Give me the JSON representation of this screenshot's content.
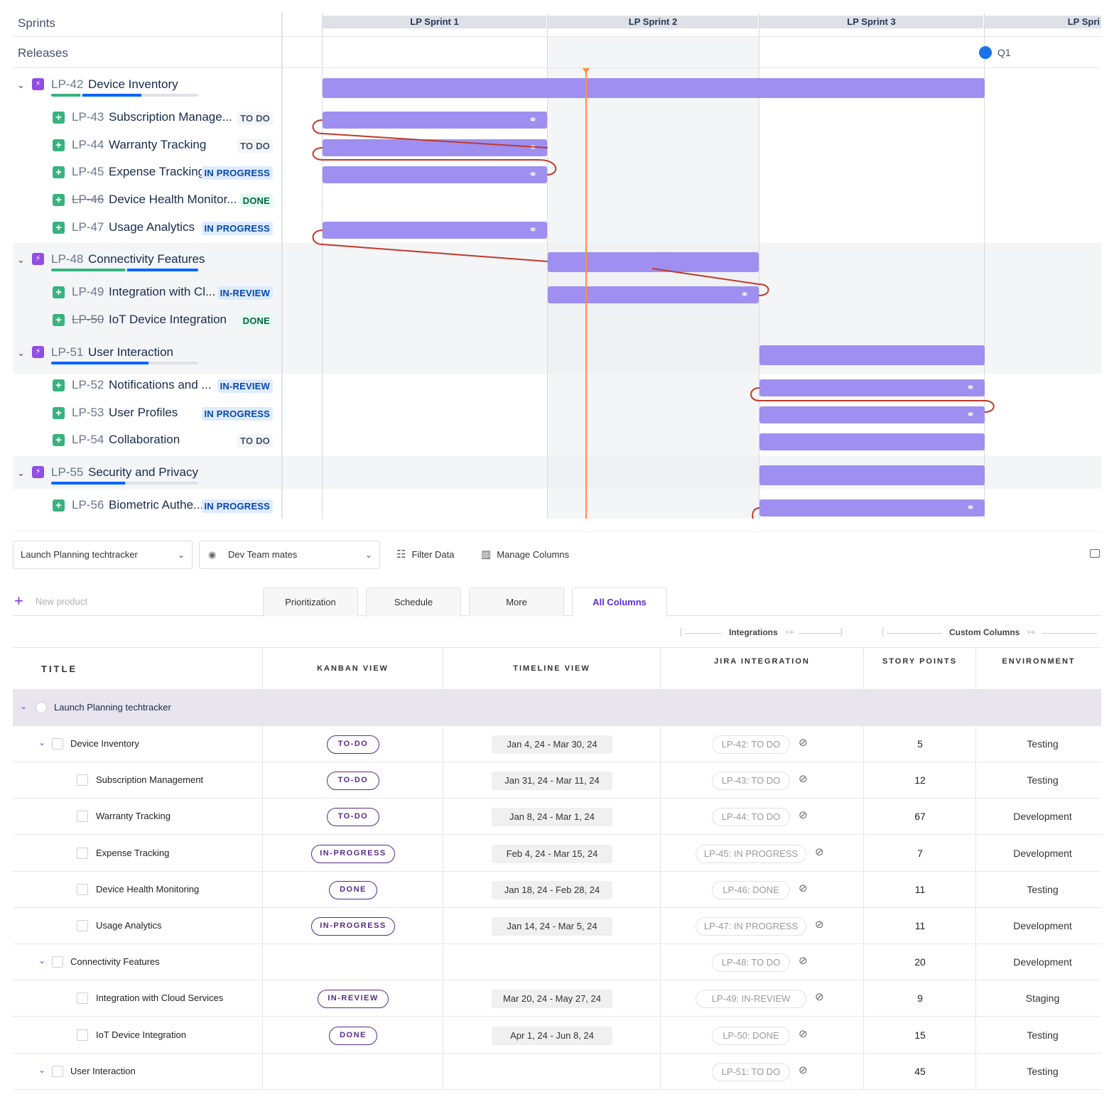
{
  "roadmap": {
    "sprints_label": "Sprints",
    "releases_label": "Releases",
    "sprints": [
      "LP Sprint 1",
      "LP Sprint 2",
      "LP Sprint 3",
      "LP Spri"
    ],
    "release": {
      "label": "Q1",
      "color": "#1a73e8"
    },
    "colors": {
      "bar": "#9e8ff0",
      "today": "#ff8f3f",
      "dependency": "#c0392b"
    },
    "rows": [
      {
        "type": "epic",
        "key": "LP-42",
        "title": "Device Inventory",
        "progress_done": 0.2,
        "progress_in_progress": 0.4
      },
      {
        "type": "story",
        "key": "LP-43",
        "title": "Subscription Manage...",
        "status": "TO DO"
      },
      {
        "type": "story",
        "key": "LP-44",
        "title": "Warranty Tracking",
        "status": "TO DO"
      },
      {
        "type": "story",
        "key": "LP-45",
        "title": "Expense Tracking",
        "status": "IN PROGRESS"
      },
      {
        "type": "story",
        "key": "LP-46",
        "title": "Device Health Monitor...",
        "status": "DONE",
        "strike": true
      },
      {
        "type": "story",
        "key": "LP-47",
        "title": "Usage Analytics",
        "status": "IN PROGRESS"
      },
      {
        "type": "epic",
        "key": "LP-48",
        "title": "Connectivity Features",
        "progress_done": 0.5,
        "progress_in_progress": 0.5
      },
      {
        "type": "story",
        "key": "LP-49",
        "title": "Integration with Cl...",
        "status": "IN-REVIEW"
      },
      {
        "type": "story",
        "key": "LP-50",
        "title": "IoT Device Integration",
        "status": "DONE",
        "strike": true
      },
      {
        "type": "epic",
        "key": "LP-51",
        "title": "User Interaction",
        "progress_done": 0,
        "progress_in_progress": 0.66
      },
      {
        "type": "story",
        "key": "LP-52",
        "title": "Notifications and ...",
        "status": "IN-REVIEW"
      },
      {
        "type": "story",
        "key": "LP-53",
        "title": "User Profiles",
        "status": "IN PROGRESS"
      },
      {
        "type": "story",
        "key": "LP-54",
        "title": "Collaboration",
        "status": "TO DO"
      },
      {
        "type": "epic",
        "key": "LP-55",
        "title": "Security and Privacy",
        "progress_done": 0,
        "progress_in_progress": 0.5
      },
      {
        "type": "story",
        "key": "LP-56",
        "title": "Biometric Authe...",
        "status": "IN PROGRESS"
      }
    ]
  },
  "toolbar": {
    "product_select": "Launch Planning techtracker",
    "view_select": "Dev Team mates",
    "filter_label": "Filter Data",
    "manage_columns_label": "Manage Columns"
  },
  "tabs": {
    "new_placeholder": "New product",
    "items": [
      "Prioritization",
      "Schedule",
      "More",
      "All Columns"
    ],
    "active": "All Columns"
  },
  "groups": {
    "integrations": "Integrations",
    "custom": "Custom Columns"
  },
  "columns": [
    "TITLE",
    "KANBAN VIEW",
    "TIMELINE VIEW",
    "JIRA INTEGRATION",
    "STORY POINTS",
    "ENVIRONMENT"
  ],
  "table": {
    "root": "Launch Planning techtracker",
    "rows": [
      {
        "level": 1,
        "title": "Device Inventory",
        "kanban": "TO-DO",
        "timeline": "Jan 4, 24 - Mar 30, 24",
        "jira": "LP-42: TO DO",
        "points": "5",
        "env": "Testing"
      },
      {
        "level": 2,
        "title": "Subscription Management",
        "kanban": "TO-DO",
        "timeline": "Jan 31, 24 - Mar 11, 24",
        "jira": "LP-43: TO DO",
        "points": "12",
        "env": "Testing"
      },
      {
        "level": 2,
        "title": "Warranty Tracking",
        "kanban": "TO-DO",
        "timeline": "Jan 8, 24 - Mar 1, 24",
        "jira": "LP-44: TO DO",
        "points": "67",
        "env": "Development"
      },
      {
        "level": 2,
        "title": "Expense Tracking",
        "kanban": "IN-PROGRESS",
        "timeline": "Feb 4, 24 - Mar 15, 24",
        "jira": "LP-45: IN PROGRESS",
        "points": "7",
        "env": "Development"
      },
      {
        "level": 2,
        "title": "Device Health Monitoring",
        "kanban": "DONE",
        "timeline": "Jan 18, 24 - Feb 28, 24",
        "jira": "LP-46: DONE",
        "points": "11",
        "env": "Testing"
      },
      {
        "level": 2,
        "title": "Usage Analytics",
        "kanban": "IN-PROGRESS",
        "timeline": "Jan 14, 24 - Mar 5, 24",
        "jira": "LP-47: IN PROGRESS",
        "points": "11",
        "env": "Development"
      },
      {
        "level": 1,
        "title": "Connectivity Features",
        "kanban": "",
        "timeline": "",
        "jira": "LP-48: TO DO",
        "points": "20",
        "env": "Development"
      },
      {
        "level": 2,
        "title": "Integration with Cloud Services",
        "kanban": "IN-REVIEW",
        "timeline": "Mar 20, 24 - May 27, 24",
        "jira": "LP-49: IN-REVIEW",
        "points": "9",
        "env": "Staging"
      },
      {
        "level": 2,
        "title": "IoT Device Integration",
        "kanban": "DONE",
        "timeline": "Apr 1, 24 - Jun 8, 24",
        "jira": "LP-50: DONE",
        "points": "15",
        "env": "Testing"
      },
      {
        "level": 1,
        "title": "User Interaction",
        "kanban": "",
        "timeline": "",
        "jira": "LP-51: TO DO",
        "points": "45",
        "env": "Testing"
      }
    ]
  }
}
